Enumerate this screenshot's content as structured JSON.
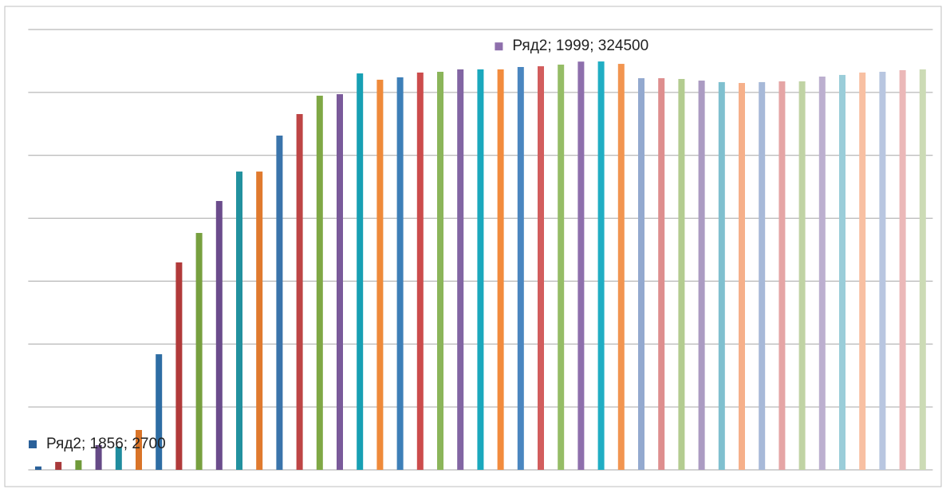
{
  "chart_data": {
    "type": "bar",
    "values": [
      2700,
      6300,
      7600,
      19700,
      18400,
      31700,
      91900,
      164900,
      188300,
      213700,
      237100,
      237100,
      265700,
      282800,
      297400,
      298600,
      315100,
      310100,
      312000,
      315800,
      316400,
      318300,
      318300,
      318300,
      320200,
      320800,
      322100,
      324500,
      324600,
      322700,
      311300,
      311300,
      310700,
      309400,
      308200,
      307500,
      308200,
      308800,
      308800,
      312600,
      313900,
      315800,
      316400,
      317700,
      318300
    ],
    "value_labels": [
      "Ряд2; 1856; 2700",
      null,
      null,
      null,
      null,
      null,
      null,
      null,
      null,
      null,
      null,
      null,
      null,
      null,
      null,
      null,
      null,
      null,
      null,
      null,
      null,
      null,
      null,
      null,
      null,
      null,
      null,
      "Ряд2; 1999; 324500",
      null,
      null,
      null,
      null,
      null,
      null,
      null,
      null,
      null,
      null,
      null,
      null,
      null,
      null,
      null,
      null,
      null
    ],
    "colors": [
      "#2a6099",
      "#a8393a",
      "#6f9a3a",
      "#654a86",
      "#1f8c9e",
      "#d97428",
      "#2e6da4",
      "#b13a3a",
      "#77a03f",
      "#6b4c8c",
      "#22919f",
      "#e07a2e",
      "#3a74ab",
      "#be4545",
      "#7fa845",
      "#7a5a9a",
      "#17a0b4",
      "#ef8a3a",
      "#3d7fb8",
      "#cc4c4c",
      "#8bb55a",
      "#8265a3",
      "#1aa8bd",
      "#f28b3d",
      "#4a86c0",
      "#d25d5d",
      "#95bd66",
      "#8e6fac",
      "#20aec4",
      "#f29550",
      "#93a9cf",
      "#de8e8e",
      "#b3cc90",
      "#ab9bc2",
      "#7fc0cf",
      "#f6b08a",
      "#a7b9d8",
      "#e5a5a5",
      "#c0d3a4",
      "#bcafcf",
      "#9acdd9",
      "#f8c0a2",
      "#b8c6e0",
      "#ebb8b8",
      "#ccdbb5"
    ],
    "ylim": [
      0,
      350000
    ],
    "yticks": [
      0,
      50000,
      100000,
      150000,
      200000,
      250000,
      300000,
      350000
    ],
    "grid": true
  }
}
